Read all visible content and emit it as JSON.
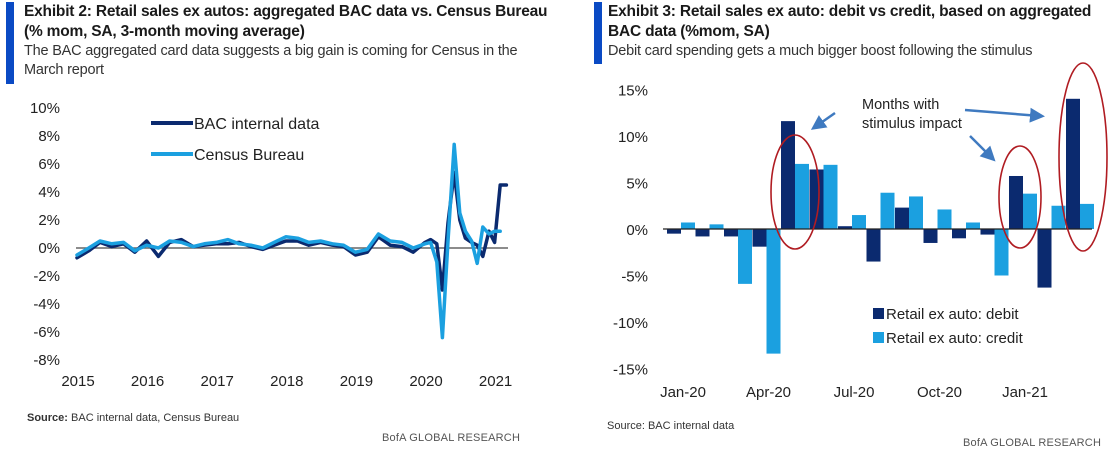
{
  "exhibit2": {
    "title": "Exhibit 2: Retail sales ex autos: aggregated BAC data vs. Census Bureau (% mom, SA, 3-month moving average)",
    "subtitle": "The BAC aggregated card data suggests a big gain is coming for Census in the March report",
    "source_label": "Source:",
    "source_text": " BAC internal data, Census  Bureau",
    "brand": "BofA GLOBAL RESEARCH"
  },
  "exhibit3": {
    "title": "Exhibit 3: Retail sales ex auto:  debit vs credit, based on aggregated BAC data (%mom, SA)",
    "subtitle": "Debit card spending gets a much bigger boost following the stimulus",
    "source_text": "Source:  BAC internal data",
    "brand": "BofA GLOBAL RESEARCH",
    "annotation": [
      "Months with",
      "stimulus impact"
    ]
  },
  "colors": {
    "dark": "#0b2a6f",
    "light": "#1ba0e0",
    "accent": "#0a4ac4",
    "ellipse": "#b01c22",
    "arrow": "#3f7ac0",
    "zero": "#666666"
  },
  "chart_data": [
    {
      "type": "line",
      "title": "Retail sales ex autos: aggregated BAC data vs. Census Bureau (% mom, SA, 3-month moving average)",
      "xlabel": "",
      "ylabel": "",
      "ylim": [
        -8,
        10
      ],
      "yticks": [
        10,
        8,
        6,
        4,
        2,
        0,
        -2,
        -4,
        -6,
        -8
      ],
      "ytick_labels": [
        "10%",
        "8%",
        "6%",
        "4%",
        "2%",
        "0%",
        "-2%",
        "-4%",
        "-6%",
        "-8%"
      ],
      "xtick_labels": [
        "2015",
        "2016",
        "2017",
        "2018",
        "2019",
        "2020",
        "2021"
      ],
      "x_start": "2015-01",
      "x_end": "2021-03",
      "legend": "top-left",
      "series": [
        {
          "name": "BAC internal data",
          "color": "#0b2a6f",
          "x": [
            2015.0,
            2015.17,
            2015.33,
            2015.5,
            2015.67,
            2015.83,
            2016.0,
            2016.17,
            2016.33,
            2016.5,
            2016.67,
            2016.83,
            2017.0,
            2017.17,
            2017.33,
            2017.5,
            2017.67,
            2017.83,
            2018.0,
            2018.17,
            2018.33,
            2018.5,
            2018.67,
            2018.83,
            2019.0,
            2019.17,
            2019.33,
            2019.5,
            2019.67,
            2019.83,
            2020.0,
            2020.08,
            2020.17,
            2020.25,
            2020.33,
            2020.42,
            2020.5,
            2020.58,
            2020.67,
            2020.75,
            2020.83,
            2020.92,
            2021.0,
            2021.08,
            2021.17
          ],
          "values": [
            -0.7,
            -0.2,
            0.4,
            0.1,
            0.3,
            -0.3,
            0.5,
            -0.6,
            0.4,
            0.6,
            0.1,
            0.2,
            0.3,
            0.3,
            0.4,
            0.1,
            -0.1,
            0.2,
            0.5,
            0.5,
            0.2,
            0.4,
            0.2,
            0.1,
            -0.5,
            -0.3,
            0.8,
            0.2,
            0.1,
            -0.3,
            0.4,
            0.6,
            0.3,
            -3.0,
            1.8,
            5.4,
            2.0,
            0.7,
            0.4,
            0.2,
            -0.6,
            1.2,
            0.4,
            4.5,
            4.5
          ]
        },
        {
          "name": "Census Bureau",
          "color": "#1ba0e0",
          "x": [
            2015.0,
            2015.17,
            2015.33,
            2015.5,
            2015.67,
            2015.83,
            2016.0,
            2016.17,
            2016.33,
            2016.5,
            2016.67,
            2016.83,
            2017.0,
            2017.17,
            2017.33,
            2017.5,
            2017.67,
            2017.83,
            2018.0,
            2018.17,
            2018.33,
            2018.5,
            2018.67,
            2018.83,
            2019.0,
            2019.17,
            2019.33,
            2019.5,
            2019.67,
            2019.83,
            2020.0,
            2020.08,
            2020.17,
            2020.25,
            2020.33,
            2020.42,
            2020.5,
            2020.58,
            2020.67,
            2020.75,
            2020.83,
            2020.92,
            2021.0,
            2021.08
          ],
          "values": [
            -0.5,
            0.0,
            0.5,
            0.3,
            0.4,
            -0.2,
            0.2,
            0.0,
            0.5,
            0.4,
            0.1,
            0.3,
            0.4,
            0.6,
            0.3,
            0.2,
            0.0,
            0.4,
            0.8,
            0.7,
            0.4,
            0.5,
            0.3,
            0.2,
            -0.3,
            -0.1,
            1.0,
            0.5,
            0.4,
            0.0,
            0.3,
            0.4,
            -1.0,
            -6.4,
            0.5,
            7.4,
            2.5,
            1.2,
            0.5,
            -1.1,
            1.5,
            1.0,
            1.2,
            1.2
          ]
        }
      ]
    },
    {
      "type": "bar",
      "title": "Retail sales ex auto: debit vs credit, based on aggregated BAC data (%mom, SA)",
      "xlabel": "",
      "ylabel": "",
      "ylim": [
        -15,
        15
      ],
      "yticks": [
        15,
        10,
        5,
        0,
        -5,
        -10,
        -15
      ],
      "ytick_labels": [
        "15%",
        "10%",
        "5%",
        "0%",
        "-5%",
        "-10%",
        "-15%"
      ],
      "categories": [
        "Jan-20",
        "Feb-20",
        "Mar-20",
        "Apr-20",
        "May-20",
        "Jun-20",
        "Jul-20",
        "Aug-20",
        "Sep-20",
        "Oct-20",
        "Nov-20",
        "Dec-20",
        "Jan-21",
        "Feb-21",
        "Mar-21"
      ],
      "xtick_labels": [
        "Jan-20",
        "Apr-20",
        "Jul-20",
        "Oct-20",
        "Jan-21"
      ],
      "legend": "bottom-center",
      "highlighted": [
        "Apr-20",
        "Jan-21",
        "Mar-21"
      ],
      "series": [
        {
          "name": "Retail ex auto: debit",
          "color": "#0b2a6f",
          "values": [
            -0.5,
            -0.8,
            -0.8,
            -1.9,
            11.6,
            6.4,
            0.3,
            -3.5,
            2.3,
            -1.5,
            -1.0,
            -0.6,
            5.7,
            -6.3,
            14.0
          ]
        },
        {
          "name": "Retail ex auto: credit",
          "color": "#1ba0e0",
          "values": [
            0.7,
            0.5,
            -5.9,
            -13.4,
            7.0,
            6.9,
            1.5,
            3.9,
            3.5,
            2.1,
            0.7,
            -5.0,
            3.8,
            2.5,
            2.7
          ]
        }
      ]
    }
  ]
}
